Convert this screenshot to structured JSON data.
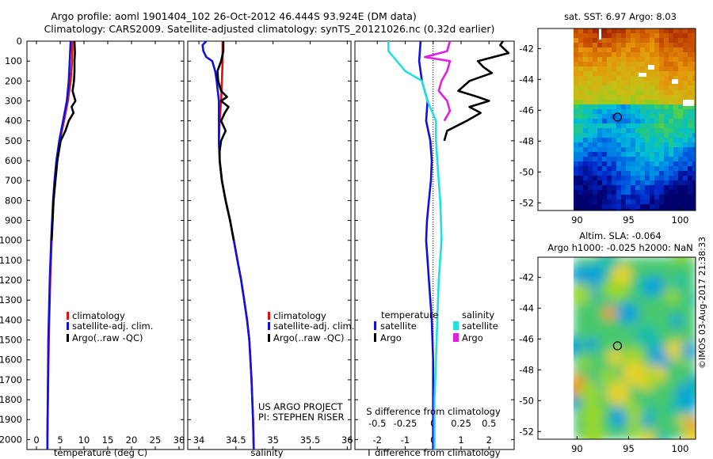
{
  "header": {
    "line1": "Argo profile: aoml 1901404_102 26-Oct-2012 46.444S 93.924E (DM data)",
    "line2": "Climatology: CARS2009. Satellite-adjusted climatology: synTS_20121026.nc (0.32d earlier)"
  },
  "colors": {
    "climatology": "#e01010",
    "satellite": "#1010e0",
    "argo": "#000000",
    "argo_salinity": "#e020e0",
    "satellite_salinity": "#20e0e0"
  },
  "project": {
    "line1": "US ARGO PROJECT",
    "line2": "PI: STEPHEN RISER"
  },
  "timestamp": "©IMOS 03-Aug-2017 21:38:33",
  "map_top": {
    "title": "sat. SST: 6.97  Argo: 8.03"
  },
  "map_bottom": {
    "title1": "Altim. SLA: -0.064",
    "title2": "Argo h1000: -0.025 h2000: NaN"
  },
  "chart_data": [
    {
      "type": "line",
      "id": "temperature",
      "xlabel": "temperature (deg C)",
      "xticks": [
        "0",
        "5",
        "10",
        "15",
        "20",
        "25",
        "30"
      ],
      "xlim": [
        -2,
        31
      ],
      "ylim": [
        0,
        2050
      ],
      "yticks": [
        "0",
        "100",
        "200",
        "300",
        "400",
        "500",
        "600",
        "700",
        "800",
        "900",
        "1000",
        "1100",
        "1200",
        "1300",
        "1400",
        "1500",
        "1600",
        "1700",
        "1800",
        "1900",
        "2000"
      ],
      "legend": [
        "climatology",
        "satellite-adj. clim.",
        "Argo(..raw -QC)"
      ],
      "series": [
        {
          "name": "climatology",
          "color": "climatology",
          "depth": [
            0,
            100,
            200,
            300,
            400,
            500,
            600,
            700,
            800,
            1000,
            1200,
            1500,
            2000,
            2050
          ],
          "values": [
            7.6,
            7.5,
            7.2,
            6.6,
            5.8,
            4.9,
            4.3,
            3.9,
            3.6,
            3.2,
            2.9,
            2.6,
            2.3,
            2.3
          ]
        },
        {
          "name": "satellite-adj. clim.",
          "color": "satellite",
          "depth": [
            0,
            100,
            200,
            300,
            400,
            500,
            600,
            700,
            800,
            1000,
            1200,
            1500,
            2000,
            2050
          ],
          "values": [
            7.2,
            7.0,
            6.8,
            6.4,
            5.6,
            4.8,
            4.2,
            3.8,
            3.5,
            3.1,
            2.8,
            2.5,
            2.3,
            2.3
          ]
        },
        {
          "name": "Argo(..raw -QC)",
          "color": "argo",
          "depth": [
            0,
            60,
            100,
            150,
            200,
            250,
            300,
            330,
            360,
            400,
            450,
            500,
            600,
            700,
            800,
            900,
            1000
          ],
          "values": [
            8.0,
            8.1,
            8.0,
            8.0,
            7.9,
            7.6,
            8.2,
            7.4,
            7.8,
            6.8,
            6.1,
            5.1,
            4.4,
            4.0,
            3.6,
            3.4,
            3.2
          ]
        }
      ]
    },
    {
      "type": "line",
      "id": "salinity",
      "xlabel": "salinity",
      "xticks": [
        "34",
        "34.5",
        "35",
        "35.5",
        "36"
      ],
      "xlim": [
        33.85,
        36.05
      ],
      "ylim": [
        0,
        2050
      ],
      "legend": [
        "climatology",
        "satellite-adj. clim.",
        "Argo(..raw -QC)"
      ],
      "series": [
        {
          "name": "climatology",
          "color": "climatology",
          "depth": [
            0,
            100,
            200,
            300,
            400,
            500,
            600,
            700,
            800,
            900,
            1000,
            1100,
            1200,
            1300,
            1400,
            1500,
            1700,
            1900,
            2050
          ],
          "values": [
            34.32,
            34.32,
            34.31,
            34.3,
            34.28,
            34.27,
            34.28,
            34.31,
            34.36,
            34.42,
            34.47,
            34.52,
            34.57,
            34.61,
            34.65,
            34.68,
            34.71,
            34.73,
            34.74
          ]
        },
        {
          "name": "satellite-adj. clim.",
          "color": "satellite",
          "depth": [
            0,
            20,
            50,
            80,
            100,
            150,
            200,
            300,
            400,
            500,
            600,
            700,
            800,
            900,
            1000,
            1100,
            1200,
            1300,
            1400,
            1500,
            1700,
            1900,
            2050
          ],
          "values": [
            34.1,
            34.05,
            34.06,
            34.1,
            34.18,
            34.22,
            34.24,
            34.27,
            34.27,
            34.27,
            34.28,
            34.31,
            34.36,
            34.42,
            34.47,
            34.52,
            34.57,
            34.61,
            34.65,
            34.68,
            34.71,
            34.73,
            34.74
          ]
        },
        {
          "name": "Argo(..raw -QC)",
          "color": "argo",
          "depth": [
            0,
            50,
            100,
            150,
            200,
            250,
            280,
            300,
            330,
            360,
            400,
            450,
            500,
            550,
            600,
            700,
            800,
            900,
            1000
          ],
          "values": [
            34.33,
            34.33,
            34.3,
            34.25,
            34.26,
            34.3,
            34.38,
            34.3,
            34.4,
            34.35,
            34.3,
            34.36,
            34.3,
            34.28,
            34.28,
            34.31,
            34.36,
            34.42,
            34.47
          ]
        }
      ]
    },
    {
      "type": "line",
      "id": "difference",
      "xlabel": "T difference from climatology",
      "xlabel2": "S difference from climatology",
      "xticks": [
        "-2",
        "-1",
        "0",
        "1",
        "2"
      ],
      "xticks2": [
        "-0.5",
        "-0.25",
        "0",
        "0.25",
        "0.5"
      ],
      "xlim": [
        -2.8,
        2.9
      ],
      "ylim": [
        0,
        2050
      ],
      "legend_left_title": "temperature",
      "legend_right_title": "salinity",
      "legend": [
        "satellite",
        "Argo",
        "satellite",
        "Argo"
      ],
      "series": [
        {
          "name": "T satellite",
          "color": "satellite",
          "depth": [
            0,
            100,
            200,
            300,
            400,
            500,
            600,
            700,
            800,
            900,
            1000,
            1100,
            1200,
            1300,
            1400,
            1600,
            1800,
            2050
          ],
          "values": [
            -0.45,
            -0.5,
            -0.4,
            -0.2,
            -0.25,
            -0.1,
            -0.05,
            -0.08,
            -0.15,
            -0.22,
            -0.25,
            -0.2,
            -0.15,
            -0.1,
            -0.05,
            0.0,
            0.0,
            0.0
          ]
        },
        {
          "name": "T Argo",
          "color": "argo",
          "depth": [
            0,
            20,
            60,
            100,
            130,
            160,
            200,
            250,
            280,
            300,
            330,
            360,
            400,
            450,
            500
          ],
          "values": [
            2.5,
            2.4,
            2.7,
            1.6,
            1.8,
            2.1,
            1.3,
            0.9,
            1.6,
            2.0,
            1.3,
            1.7,
            1.2,
            0.5,
            0.4
          ]
        },
        {
          "name": "S satellite",
          "color": "satellite_salinity",
          "depth": [
            0,
            50,
            100,
            150,
            200,
            300,
            400,
            500,
            600,
            700,
            800,
            900,
            1000,
            1200,
            1400,
            1600,
            1800,
            2050
          ],
          "values": [
            -1.6,
            -1.6,
            -1.3,
            -1.0,
            -0.4,
            -0.2,
            0.1,
            0.1,
            0.15,
            0.2,
            0.25,
            0.28,
            0.3,
            0.2,
            0.15,
            0.1,
            0.05,
            0.05
          ]
        },
        {
          "name": "S Argo",
          "color": "argo_salinity",
          "depth": [
            0,
            50,
            80,
            100,
            150,
            200,
            250,
            300,
            350,
            400
          ],
          "values": [
            0.6,
            0.5,
            -0.3,
            0.6,
            0.5,
            0.3,
            0.2,
            0.5,
            0.6,
            0.4
          ]
        }
      ]
    },
    {
      "type": "heatmap",
      "id": "sst-map",
      "title": "sat. SST: 6.97  Argo: 8.03",
      "xticks": [
        "90",
        "95",
        "100"
      ],
      "yticks": [
        "-42",
        "-44",
        "-46",
        "-48",
        "-50",
        "-52"
      ],
      "xlim": [
        86.2,
        101.5
      ],
      "ylim": [
        -52.5,
        -40.7
      ],
      "marker": {
        "lon": 93.924,
        "lat": -46.444
      }
    },
    {
      "type": "heatmap",
      "id": "sla-map",
      "title": "Altim. SLA: -0.064",
      "xticks": [
        "90",
        "95",
        "100"
      ],
      "yticks": [
        "-42",
        "-44",
        "-46",
        "-48",
        "-50",
        "-52"
      ],
      "xlim": [
        86.2,
        101.5
      ],
      "ylim": [
        -52.5,
        -40.7
      ],
      "marker": {
        "lon": 93.924,
        "lat": -46.444
      }
    }
  ]
}
